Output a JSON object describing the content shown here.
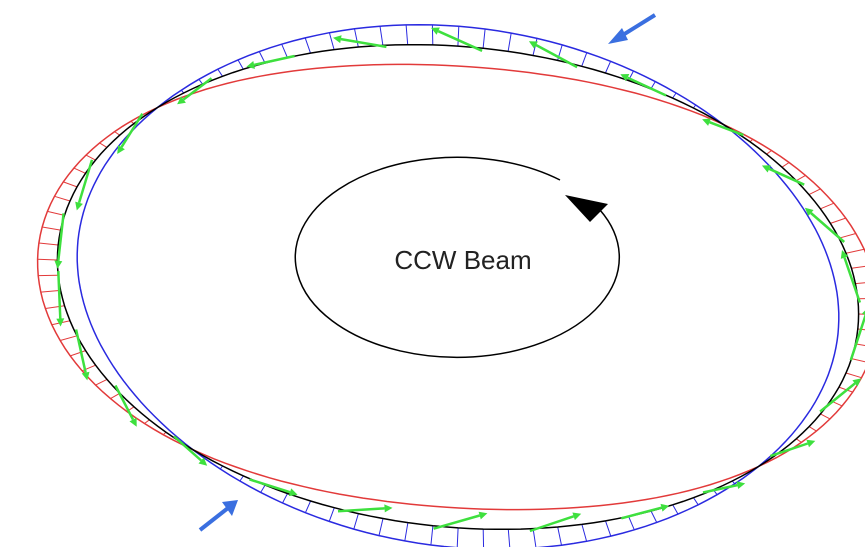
{
  "label": "CCW Beam"
}
